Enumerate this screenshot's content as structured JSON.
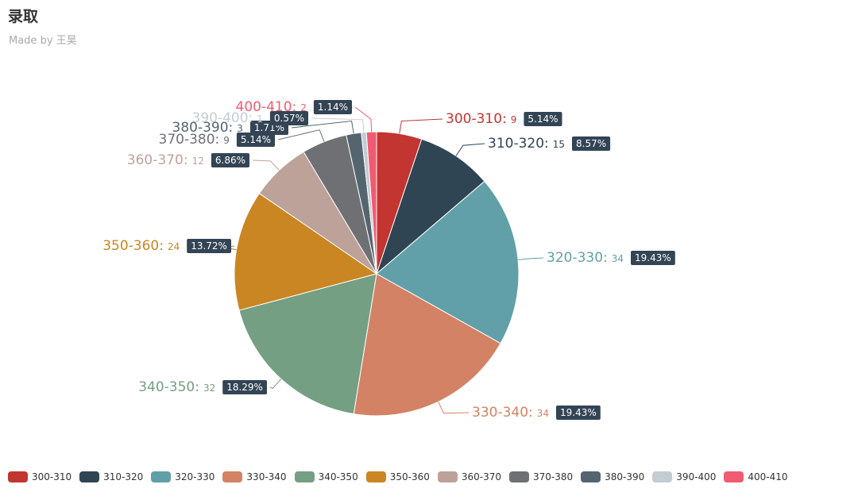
{
  "header": {
    "title": "录取",
    "subtitle": "Made by 王昊"
  },
  "chart_data": {
    "type": "pie",
    "title": "录取",
    "subtitle": "Made by 王昊",
    "legend_position": "bottom",
    "slices": [
      {
        "name": "300-310",
        "value": 9,
        "percent": "5.14%",
        "color": "#c23531"
      },
      {
        "name": "310-320",
        "value": 15,
        "percent": "8.57%",
        "color": "#2f4554"
      },
      {
        "name": "320-330",
        "value": 34,
        "percent": "19.43%",
        "color": "#61a0a8"
      },
      {
        "name": "330-340",
        "value": 34,
        "percent": "19.43%",
        "color": "#d48265"
      },
      {
        "name": "340-350",
        "value": 32,
        "percent": "18.29%",
        "color": "#749f83"
      },
      {
        "name": "350-360",
        "value": 24,
        "percent": "13.72%",
        "color": "#ca8622"
      },
      {
        "name": "360-370",
        "value": 12,
        "percent": "6.86%",
        "color": "#bda29a"
      },
      {
        "name": "370-380",
        "value": 9,
        "percent": "5.14%",
        "color": "#6e7074"
      },
      {
        "name": "380-390",
        "value": 3,
        "percent": "1.71%",
        "color": "#546570"
      },
      {
        "name": "390-400",
        "value": 1,
        "percent": "0.57%",
        "color": "#c4ccd3"
      },
      {
        "name": "400-410",
        "value": 2,
        "percent": "1.14%",
        "color": "#f05b72"
      }
    ]
  }
}
